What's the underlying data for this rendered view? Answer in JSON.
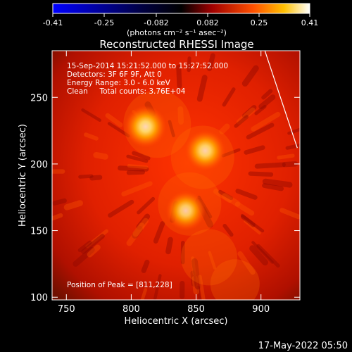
{
  "colorbar": {
    "ticks": [
      "-0.41",
      "-0.25",
      "-0.082",
      "0.082",
      "0.25",
      "0.41"
    ],
    "units": "(photons cm⁻² s⁻¹ asec⁻²)"
  },
  "chart_data": {
    "type": "heatmap",
    "title": "Reconstructed RHESSI Image",
    "xlabel": "Heliocentric X (arcsec)",
    "ylabel": "Heliocentric Y (arcsec)",
    "xlim": [
      739,
      930
    ],
    "ylim": [
      98,
      285
    ],
    "xticks": [
      "750",
      "800",
      "850",
      "900"
    ],
    "yticks": [
      "100",
      "150",
      "200",
      "250"
    ],
    "annotations": [
      "15-Sep-2014 15:21:52.000 to 15:27:52.000",
      "Detectors: 3F 6F 9F, Att 0",
      "Energy Range: 3.0 - 6.0 keV",
      "Clean     Total counts: 3.76E+04"
    ],
    "peak_label": "Position of Peak = [811,228]",
    "sources": [
      {
        "x": 811,
        "y": 228,
        "intensity": 1.0
      },
      {
        "x": 857,
        "y": 210,
        "intensity": 0.9
      },
      {
        "x": 842,
        "y": 165,
        "intensity": 0.8
      }
    ],
    "limb_line": [
      [
        903,
        285
      ],
      [
        928,
        212
      ]
    ],
    "colors": {
      "background": "#000000",
      "text": "#ffffff"
    }
  },
  "footer": {
    "timestamp": "17-May-2022 05:50"
  }
}
